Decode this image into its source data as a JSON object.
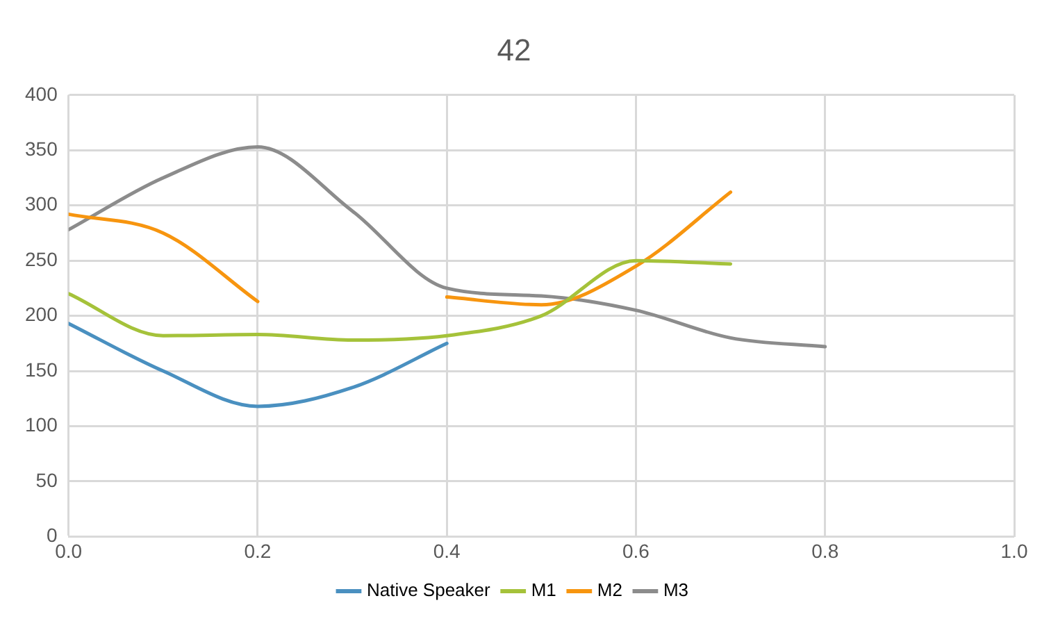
{
  "chart_data": {
    "type": "line",
    "title": "42",
    "x": [
      0,
      0.1,
      0.2,
      0.3,
      0.4,
      0.5,
      0.6,
      0.7,
      0.8
    ],
    "xlim": [
      0,
      1
    ],
    "xticks": [
      {
        "value": 0,
        "label": "0.0"
      },
      0.2,
      0.4,
      0.6,
      0.8,
      {
        "value": 1,
        "label": "1.0"
      }
    ],
    "ylim": [
      0,
      400
    ],
    "yticks": [
      0,
      50,
      100,
      150,
      200,
      250,
      300,
      350,
      400
    ],
    "grid": true,
    "legend": "bottom",
    "marker": "none",
    "line_style": "solid",
    "series": [
      {
        "name": "Native Speaker",
        "color": "#4a90c0",
        "values": [
          193,
          150,
          118,
          135,
          175,
          null,
          null,
          null,
          null
        ]
      },
      {
        "name": "M1",
        "color": "#a5c23a",
        "values": [
          220,
          182,
          183,
          178,
          182,
          200,
          250,
          247,
          null
        ]
      },
      {
        "name": "M2",
        "color": "#f7950f",
        "values": [
          292,
          275,
          213,
          null,
          217,
          210,
          245,
          312,
          null
        ]
      },
      {
        "name": "M3",
        "color": "#8c8c8c",
        "values": [
          278,
          325,
          353,
          295,
          225,
          218,
          205,
          180,
          172
        ]
      }
    ]
  }
}
